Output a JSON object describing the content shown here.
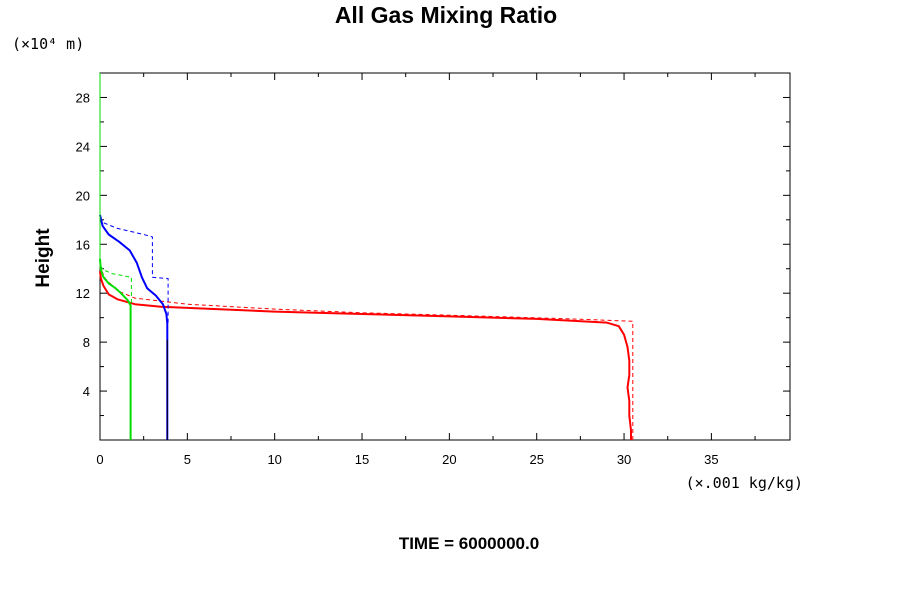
{
  "chart_data": {
    "type": "line",
    "title": "All Gas Mixing Ratio",
    "ylabel": "Height",
    "y_unit_label": "(×10⁴ m)",
    "x_unit_label": "(×.001 kg/kg)",
    "footer": "TIME = 6000000.0",
    "xlim": [
      0,
      39.5
    ],
    "ylim": [
      0,
      30
    ],
    "x_ticks": [
      0,
      5,
      10,
      15,
      20,
      25,
      30,
      35
    ],
    "y_ticks": [
      4,
      8,
      12,
      16,
      20,
      24,
      28
    ],
    "x_tick_labels": [
      "0",
      "5",
      "10",
      "15",
      "20",
      "25",
      "30",
      "35"
    ],
    "y_tick_labels": [
      "4",
      "8",
      "12",
      "16",
      "20",
      "24",
      "28"
    ],
    "grid": false,
    "series": [
      {
        "color": "#ff0000",
        "style": "dashed",
        "width": 1,
        "points": [
          [
            30.5,
            0
          ],
          [
            30.5,
            9.7
          ],
          [
            27,
            9.9
          ],
          [
            20,
            10.2
          ],
          [
            15,
            10.4
          ],
          [
            10,
            10.7
          ],
          [
            5,
            11.1
          ],
          [
            2,
            11.6
          ],
          [
            1,
            12.2
          ],
          [
            0.3,
            13.2
          ],
          [
            0.05,
            14.0
          ],
          [
            0,
            14.3
          ]
        ]
      },
      {
        "color": "#ff0000",
        "style": "solid",
        "width": 2,
        "points": [
          [
            30.4,
            0
          ],
          [
            30.4,
            0.8
          ],
          [
            30.3,
            2.0
          ],
          [
            30.3,
            3.2
          ],
          [
            30.2,
            4.3
          ],
          [
            30.3,
            5.3
          ],
          [
            30.3,
            6.5
          ],
          [
            30.2,
            7.6
          ],
          [
            30.0,
            8.6
          ],
          [
            29.7,
            9.3
          ],
          [
            29.0,
            9.6
          ],
          [
            25,
            9.9
          ],
          [
            20,
            10.1
          ],
          [
            15,
            10.3
          ],
          [
            10,
            10.5
          ],
          [
            5,
            10.8
          ],
          [
            3.5,
            10.9
          ],
          [
            2,
            11.1
          ],
          [
            1,
            11.5
          ],
          [
            0.5,
            11.9
          ],
          [
            0.2,
            12.6
          ],
          [
            0.05,
            13.2
          ],
          [
            0,
            13.8
          ]
        ]
      },
      {
        "color": "#0000ff",
        "style": "dashed",
        "width": 1,
        "points": [
          [
            3.9,
            9.6
          ],
          [
            3.9,
            13.2
          ],
          [
            3.0,
            13.3
          ],
          [
            3.0,
            16.6
          ],
          [
            2.5,
            16.8
          ],
          [
            1.0,
            17.3
          ],
          [
            0.3,
            17.7
          ],
          [
            0,
            17.9
          ]
        ]
      },
      {
        "color": "#0000ff",
        "style": "solid",
        "width": 2,
        "points": [
          [
            3.85,
            0
          ],
          [
            3.85,
            9.5
          ],
          [
            3.8,
            10.3
          ],
          [
            3.6,
            11.1
          ],
          [
            3.2,
            11.8
          ],
          [
            2.7,
            12.4
          ],
          [
            2.4,
            13.3
          ],
          [
            2.1,
            14.5
          ],
          [
            1.7,
            15.5
          ],
          [
            1.1,
            16.2
          ],
          [
            0.5,
            16.8
          ],
          [
            0.15,
            17.5
          ],
          [
            0,
            18.4
          ]
        ]
      },
      {
        "color": "#00dd00",
        "style": "dashed",
        "width": 1,
        "points": [
          [
            1.8,
            11.2
          ],
          [
            1.8,
            13.3
          ],
          [
            0.7,
            13.6
          ],
          [
            0.2,
            13.9
          ],
          [
            0,
            14.3
          ]
        ]
      },
      {
        "color": "#00dd00",
        "style": "solid",
        "width": 2,
        "points": [
          [
            1.75,
            0
          ],
          [
            1.75,
            11.0
          ],
          [
            1.6,
            11.4
          ],
          [
            1.2,
            12.0
          ],
          [
            0.9,
            12.4
          ],
          [
            0.5,
            12.8
          ],
          [
            0.2,
            13.3
          ],
          [
            0.05,
            13.9
          ],
          [
            0,
            14.8
          ]
        ]
      },
      {
        "color": "#00dd00",
        "style": "solid",
        "width": 1,
        "points": [
          [
            0,
            14.8
          ],
          [
            0,
            30
          ]
        ]
      },
      {
        "color": "#000000",
        "style": "solid",
        "width": 1,
        "points": [
          [
            3.85,
            0
          ],
          [
            3.85,
            8.2
          ]
        ]
      }
    ]
  }
}
